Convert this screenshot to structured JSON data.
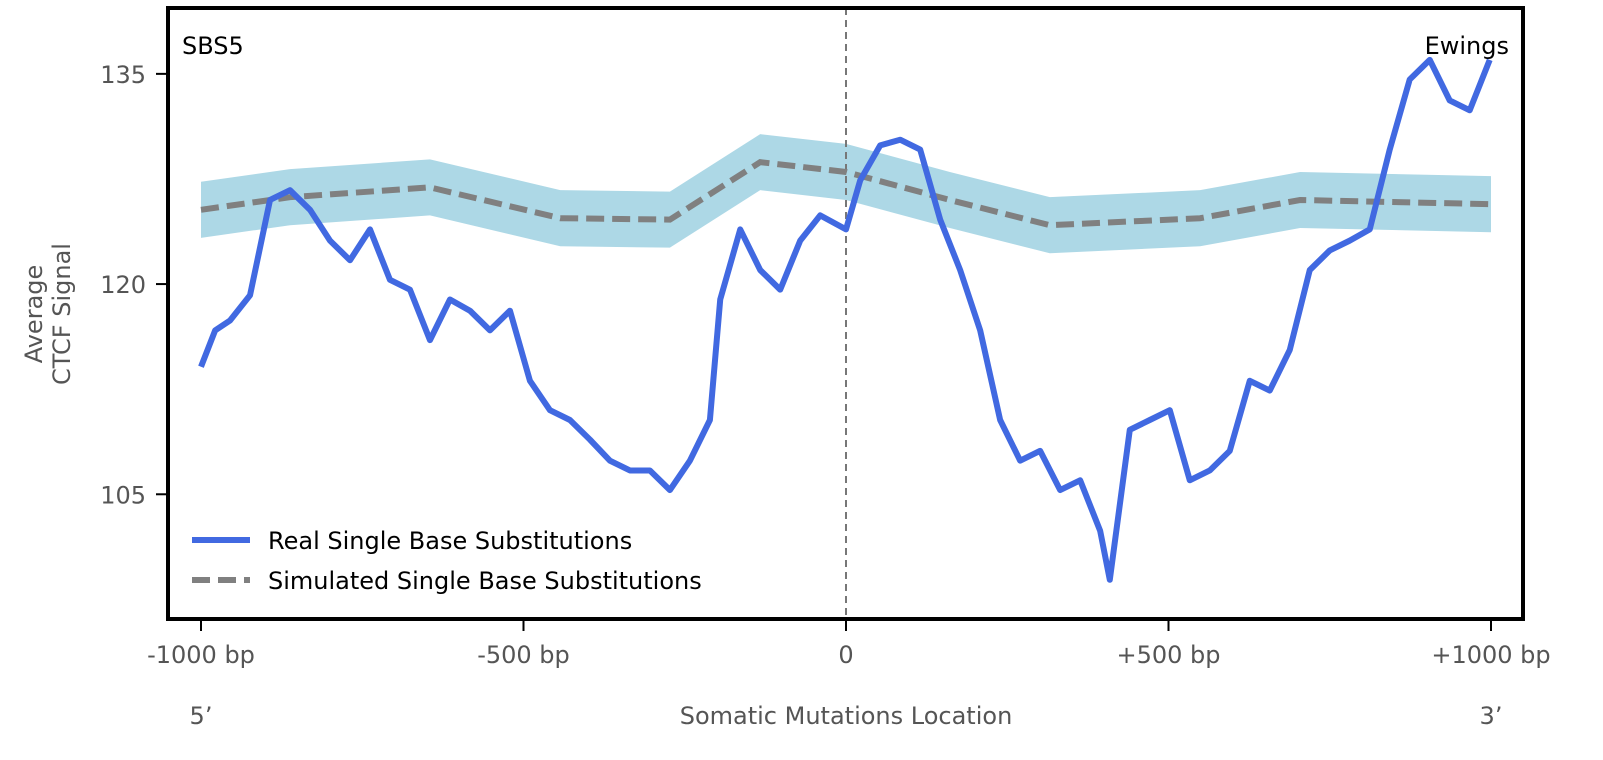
{
  "chart_data": {
    "type": "line",
    "annotations": {
      "signature": "SBS5",
      "cancer_type": "Ewings"
    },
    "xlabel": "Somatic Mutations Location",
    "ylabel_lines": [
      "Average",
      "CTCF Signal"
    ],
    "x_end_labels": {
      "left": "5’",
      "right": "3’"
    },
    "xlim": [
      -1000,
      1000
    ],
    "ylim": [
      96.1,
      139.7
    ],
    "xticks": [
      {
        "value": -1000,
        "label": "-1000 bp"
      },
      {
        "value": -500,
        "label": "-500 bp"
      },
      {
        "value": 0,
        "label": "0"
      },
      {
        "value": 500,
        "label": "+500 bp"
      },
      {
        "value": 1000,
        "label": "+1000 bp"
      }
    ],
    "yticks": [
      {
        "value": 105,
        "label": "105"
      },
      {
        "value": 120,
        "label": "120"
      },
      {
        "value": 135,
        "label": "135"
      }
    ],
    "grid": false,
    "legend_position": "bottom-left",
    "vline_at": 0,
    "series": [
      {
        "name": "Real Single Base Substitutions",
        "color": "#4169e1",
        "style": "solid",
        "points": [
          [
            -1000,
            114.1
          ],
          [
            -978,
            116.7
          ],
          [
            -955,
            117.4
          ],
          [
            -924,
            119.2
          ],
          [
            -893,
            126.0
          ],
          [
            -862,
            126.7
          ],
          [
            -831,
            125.3
          ],
          [
            -800,
            123.1
          ],
          [
            -769,
            121.7
          ],
          [
            -738,
            123.9
          ],
          [
            -707,
            120.3
          ],
          [
            -676,
            119.6
          ],
          [
            -645,
            116.0
          ],
          [
            -614,
            118.9
          ],
          [
            -583,
            118.1
          ],
          [
            -552,
            116.7
          ],
          [
            -521,
            118.1
          ],
          [
            -490,
            113.1
          ],
          [
            -459,
            111.0
          ],
          [
            -428,
            110.3
          ],
          [
            -397,
            108.9
          ],
          [
            -366,
            107.4
          ],
          [
            -335,
            106.7
          ],
          [
            -304,
            106.7
          ],
          [
            -273,
            105.3
          ],
          [
            -242,
            107.4
          ],
          [
            -211,
            110.3
          ],
          [
            -195,
            118.9
          ],
          [
            -164,
            123.9
          ],
          [
            -133,
            121.0
          ],
          [
            -102,
            119.6
          ],
          [
            -71,
            123.1
          ],
          [
            -40,
            124.9
          ],
          [
            0,
            123.9
          ],
          [
            22,
            127.4
          ],
          [
            53,
            129.9
          ],
          [
            84,
            130.3
          ],
          [
            115,
            129.6
          ],
          [
            146,
            124.6
          ],
          [
            177,
            121.0
          ],
          [
            208,
            116.7
          ],
          [
            239,
            110.3
          ],
          [
            270,
            107.4
          ],
          [
            301,
            108.1
          ],
          [
            332,
            105.3
          ],
          [
            363,
            106.0
          ],
          [
            394,
            102.4
          ],
          [
            409,
            98.9
          ],
          [
            440,
            109.6
          ],
          [
            471,
            110.3
          ],
          [
            502,
            111.0
          ],
          [
            533,
            106.0
          ],
          [
            564,
            106.7
          ],
          [
            595,
            108.1
          ],
          [
            626,
            113.1
          ],
          [
            657,
            112.4
          ],
          [
            688,
            115.3
          ],
          [
            719,
            121.0
          ],
          [
            750,
            122.4
          ],
          [
            781,
            123.1
          ],
          [
            812,
            123.9
          ],
          [
            843,
            129.6
          ],
          [
            874,
            134.6
          ],
          [
            905,
            136.0
          ],
          [
            936,
            133.1
          ],
          [
            967,
            132.4
          ],
          [
            998,
            136.0
          ]
        ]
      },
      {
        "name": "Simulated Single Base Substitutions",
        "color": "#808080",
        "style": "dashed",
        "band_color": "#add8e6",
        "band_halfwidth": 2.0,
        "points": [
          [
            -1000,
            125.3
          ],
          [
            -862,
            126.2
          ],
          [
            -645,
            126.9
          ],
          [
            -443,
            124.7
          ],
          [
            -273,
            124.6
          ],
          [
            -133,
            128.7
          ],
          [
            0,
            128.0
          ],
          [
            161,
            126.0
          ],
          [
            316,
            124.2
          ],
          [
            549,
            124.7
          ],
          [
            704,
            126.0
          ],
          [
            1000,
            125.7
          ]
        ]
      }
    ]
  }
}
